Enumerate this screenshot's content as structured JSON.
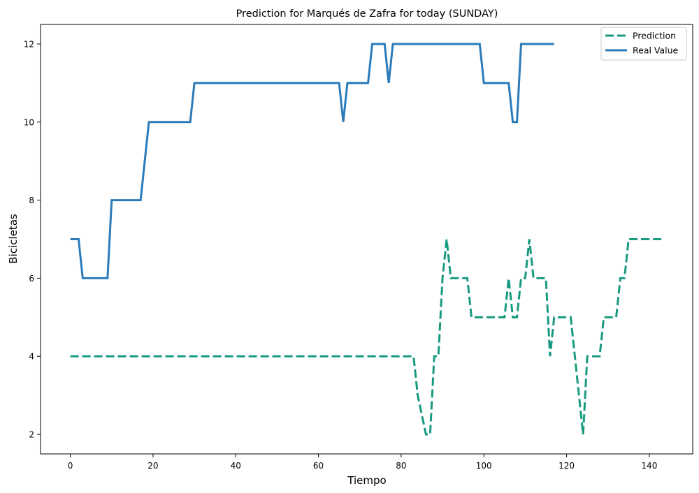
{
  "chart_data": {
    "type": "line",
    "title": "Prediction for Marqués de Zafra for today (SUNDAY)",
    "xlabel": "Tiempo",
    "ylabel": "Bicicletas",
    "xlim": [
      -7.2,
      150.5
    ],
    "ylim": [
      1.5,
      12.5
    ],
    "xticks": [
      0,
      20,
      40,
      60,
      80,
      100,
      120,
      140
    ],
    "yticks": [
      2,
      4,
      6,
      8,
      10,
      12
    ],
    "grid": false,
    "legend": "top-right",
    "series": [
      {
        "name": "Prediction",
        "color": "#189a80",
        "style": "dashed",
        "x": [
          0,
          83,
          84,
          86,
          87,
          88,
          89,
          90,
          91,
          92,
          95,
          96,
          97,
          98,
          105,
          106,
          107,
          108,
          109,
          110,
          111,
          112,
          113,
          115,
          116,
          117,
          121,
          122,
          123,
          124,
          125,
          126,
          127,
          128,
          129,
          130,
          131,
          132,
          133,
          134,
          135,
          143
        ],
        "y": [
          4,
          4,
          3,
          2,
          2,
          4,
          4,
          6,
          7,
          6,
          6,
          6,
          5,
          5,
          5,
          6,
          5,
          5,
          6,
          6,
          7,
          6,
          6,
          6,
          4,
          5,
          5,
          4,
          3,
          2,
          4,
          4,
          4,
          4,
          5,
          5,
          5,
          5,
          6,
          6,
          7,
          7
        ]
      },
      {
        "name": "Real Value",
        "color": "#2b7bba",
        "style": "solid",
        "x": [
          0,
          2,
          3,
          9,
          10,
          17,
          18,
          19,
          29,
          30,
          65,
          66,
          67,
          72,
          73,
          76,
          77,
          78,
          99,
          100,
          106,
          107,
          108,
          109,
          117
        ],
        "y": [
          7,
          7,
          6,
          6,
          8,
          8,
          9,
          10,
          10,
          11,
          11,
          10,
          11,
          11,
          12,
          12,
          11,
          12,
          12,
          11,
          11,
          10,
          10,
          12,
          12
        ]
      }
    ]
  }
}
